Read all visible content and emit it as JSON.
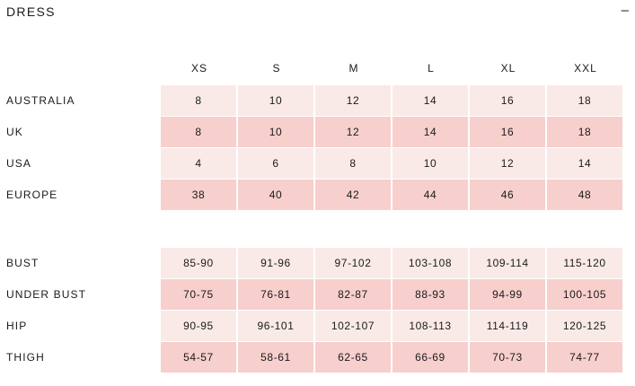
{
  "header": {
    "title": "DRESS",
    "collapse_symbol": "–"
  },
  "sizes": [
    "XS",
    "S",
    "M",
    "L",
    "XL",
    "XXL"
  ],
  "conversion": [
    {
      "label": "AUSTRALIA",
      "values": [
        "8",
        "10",
        "12",
        "14",
        "16",
        "18"
      ]
    },
    {
      "label": "UK",
      "values": [
        "8",
        "10",
        "12",
        "14",
        "16",
        "18"
      ]
    },
    {
      "label": "USA",
      "values": [
        "4",
        "6",
        "8",
        "10",
        "12",
        "14"
      ]
    },
    {
      "label": "EUROPE",
      "values": [
        "38",
        "40",
        "42",
        "44",
        "46",
        "48"
      ]
    }
  ],
  "measurements": [
    {
      "label": "BUST",
      "values": [
        "85-90",
        "91-96",
        "97-102",
        "103-108",
        "109-114",
        "115-120"
      ]
    },
    {
      "label": "UNDER BUST",
      "values": [
        "70-75",
        "76-81",
        "82-87",
        "88-93",
        "94-99",
        "100-105"
      ]
    },
    {
      "label": "HIP",
      "values": [
        "90-95",
        "96-101",
        "102-107",
        "108-113",
        "114-119",
        "120-125"
      ]
    },
    {
      "label": "THIGH",
      "values": [
        "54-57",
        "58-61",
        "62-65",
        "66-69",
        "70-73",
        "74-77"
      ]
    }
  ],
  "colors": {
    "row_light": "#f9eae8",
    "row_dark": "#f7cfcd"
  }
}
